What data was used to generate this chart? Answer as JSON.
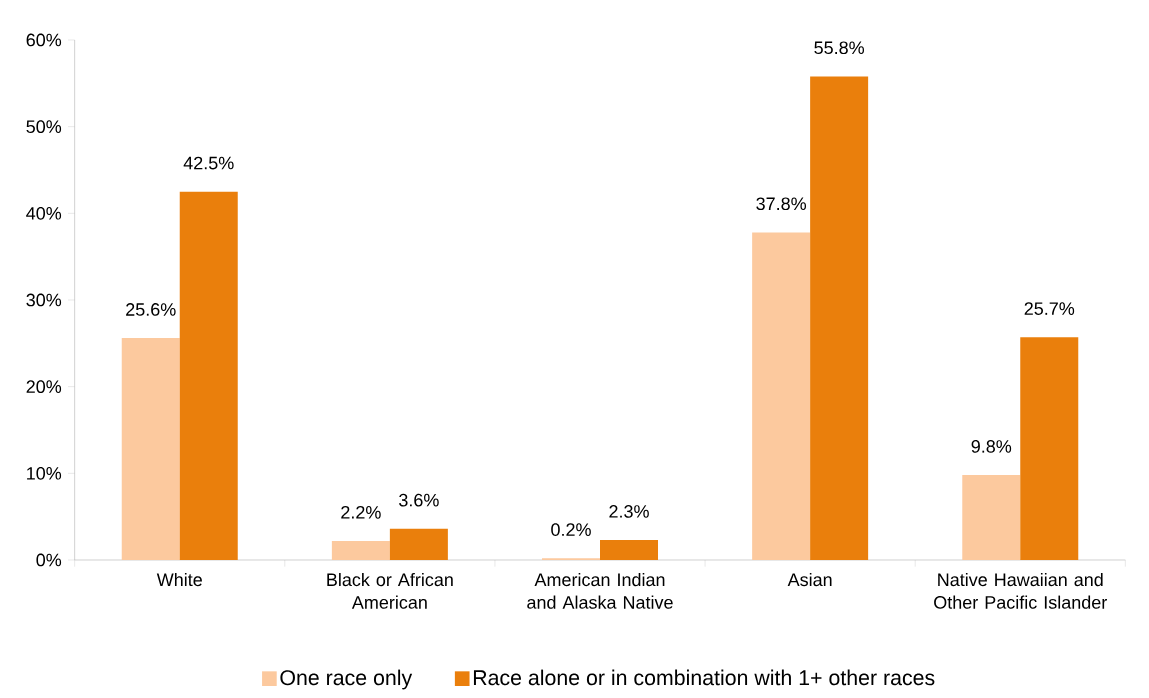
{
  "chart_data": {
    "type": "bar",
    "categories": [
      "White",
      "Black or African American",
      "American Indian and Alaska Native",
      "Asian",
      "Native Hawaiian and Other Pacific Islander"
    ],
    "series": [
      {
        "name": "One race only",
        "color": "#fcc99e",
        "values": [
          25.6,
          2.2,
          0.2,
          37.8,
          9.8
        ],
        "value_labels": [
          "25.6%",
          "2.2%",
          "0.2%",
          "37.8%",
          "9.8%"
        ]
      },
      {
        "name": "Race alone or in combination with 1+ other races",
        "color": "#ea7f0c",
        "values": [
          42.5,
          3.6,
          2.3,
          55.8,
          25.7
        ],
        "value_labels": [
          "42.5%",
          "3.6%",
          "2.3%",
          "55.8%",
          "25.7%"
        ]
      }
    ],
    "ylim": [
      0,
      60
    ],
    "yticks": [
      {
        "value": 0,
        "label": "0%"
      },
      {
        "value": 10,
        "label": "10%"
      },
      {
        "value": 20,
        "label": "20%"
      },
      {
        "value": 30,
        "label": "30%"
      },
      {
        "value": 40,
        "label": "40%"
      },
      {
        "value": 50,
        "label": "50%"
      },
      {
        "value": 60,
        "label": "60%"
      }
    ],
    "legend": "bottom",
    "grid": false
  }
}
